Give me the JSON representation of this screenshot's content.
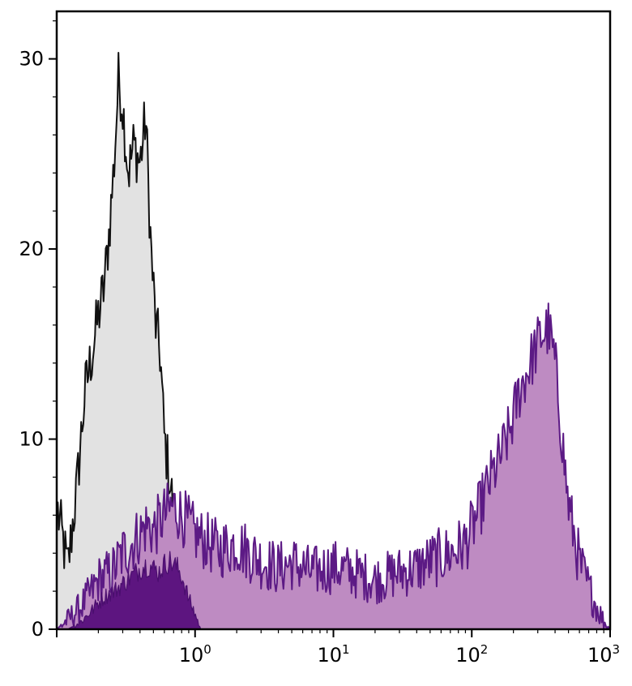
{
  "chart_data": {
    "type": "area",
    "title": "",
    "xlabel": "",
    "ylabel": "",
    "x_scale": "log",
    "xlim": [
      0.1,
      1000
    ],
    "ylim": [
      0,
      32.5
    ],
    "grid": false,
    "legend": "none",
    "y_ticks": [
      {
        "value": 0,
        "label": "0"
      },
      {
        "value": 10,
        "label": "10"
      },
      {
        "value": 20,
        "label": "20"
      },
      {
        "value": 30,
        "label": "30"
      }
    ],
    "x_ticks": [
      {
        "value": 1,
        "base": "10",
        "exp": "0"
      },
      {
        "value": 10,
        "base": "10",
        "exp": "1"
      },
      {
        "value": 100,
        "base": "10",
        "exp": "2"
      },
      {
        "value": 1000,
        "base": "10",
        "exp": "3"
      }
    ],
    "series": [
      {
        "fill": "#e2e2e2",
        "stroke": "#111111",
        "x": [
          0.1,
          0.12,
          0.14,
          0.16,
          0.18,
          0.2,
          0.22,
          0.24,
          0.26,
          0.28,
          0.3,
          0.33,
          0.36,
          0.4,
          0.44,
          0.48,
          0.52,
          0.56,
          0.6,
          0.65,
          0.7,
          0.75,
          0.8,
          0.9,
          1.0,
          1.2,
          1.5,
          2.0,
          3.0,
          4.0,
          6.0
        ],
        "y": [
          6.5,
          3.2,
          7.5,
          12.5,
          14.5,
          16.5,
          18.0,
          21.0,
          24.5,
          29.0,
          27.5,
          24.0,
          25.5,
          24.5,
          27.0,
          20.0,
          16.0,
          14.5,
          10.0,
          8.2,
          6.0,
          3.5,
          2.5,
          1.6,
          1.0,
          0.6,
          0.5,
          0.3,
          0.2,
          0.1,
          0.0
        ]
      },
      {
        "fill": "#be8bc2",
        "stroke": "#5c1a85",
        "x": [
          0.1,
          0.12,
          0.15,
          0.18,
          0.2,
          0.25,
          0.3,
          0.35,
          0.4,
          0.45,
          0.5,
          0.6,
          0.7,
          0.8,
          0.9,
          1.0,
          1.2,
          1.5,
          2.0,
          2.5,
          3.0,
          4.0,
          5.0,
          7.0,
          10,
          15,
          20,
          30,
          40,
          50,
          70,
          90,
          110,
          130,
          160,
          190,
          220,
          250,
          280,
          320,
          360,
          400,
          450,
          500,
          600,
          700,
          800,
          900,
          1000
        ],
        "y": [
          0.0,
          0.5,
          1.2,
          2.0,
          2.6,
          3.0,
          4.0,
          4.5,
          5.0,
          5.5,
          5.2,
          6.0,
          6.5,
          6.0,
          5.5,
          5.0,
          4.6,
          4.2,
          4.5,
          4.0,
          3.6,
          3.2,
          3.5,
          3.0,
          3.3,
          2.9,
          2.6,
          3.0,
          3.2,
          3.6,
          4.0,
          4.5,
          6.0,
          7.5,
          9.0,
          10.5,
          12.5,
          13.5,
          14.5,
          15.5,
          15.8,
          14.0,
          10.0,
          6.5,
          3.5,
          2.2,
          1.2,
          0.4,
          0.0
        ]
      },
      {
        "fill": "#5d1580",
        "stroke": "#4a0e6e",
        "x": [
          0.12,
          0.15,
          0.18,
          0.2,
          0.23,
          0.26,
          0.3,
          0.35,
          0.4,
          0.45,
          0.5,
          0.55,
          0.6,
          0.65,
          0.7,
          0.75,
          0.8,
          0.85,
          0.9,
          1.0,
          1.1
        ],
        "y": [
          0.0,
          0.4,
          1.0,
          1.4,
          1.8,
          2.0,
          2.4,
          2.8,
          3.2,
          3.4,
          3.2,
          3.0,
          3.4,
          3.6,
          3.4,
          3.2,
          2.8,
          2.2,
          1.6,
          0.8,
          0.0
        ]
      }
    ]
  }
}
